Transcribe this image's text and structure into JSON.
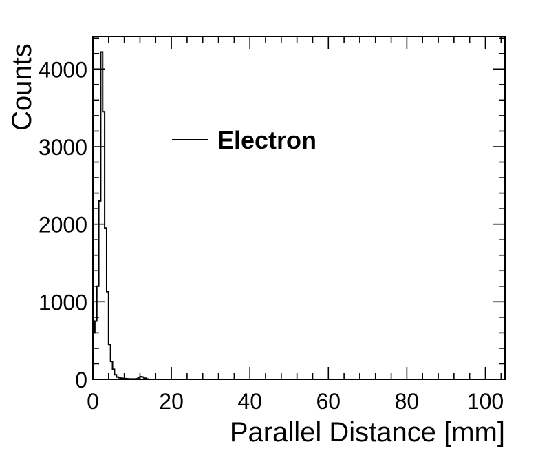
{
  "chart_data": {
    "type": "histogram",
    "title": "",
    "xlabel": "Parallel Distance [mm]",
    "ylabel": "Counts",
    "xlim": [
      0,
      105
    ],
    "ylim": [
      0,
      4420
    ],
    "xticks": [
      0,
      20,
      40,
      60,
      80,
      100
    ],
    "yticks": [
      0,
      1000,
      2000,
      3000,
      4000
    ],
    "grid": false,
    "legend_position": "top-center",
    "series": [
      {
        "name": "Electron",
        "color": "#000000",
        "bin_width": 0.5,
        "x": [
          0,
          0.5,
          1,
          1.5,
          2,
          2.5,
          3,
          3.5,
          4,
          4.5,
          5,
          5.5,
          6,
          6.5,
          7,
          7.5,
          8,
          8.5,
          9,
          9.5,
          10,
          10.5,
          11,
          11.5,
          12,
          12.5,
          13,
          13.5,
          14
        ],
        "values": [
          600,
          750,
          1200,
          2300,
          4220,
          3450,
          1950,
          1130,
          450,
          230,
          130,
          60,
          30,
          20,
          15,
          12,
          10,
          8,
          6,
          5,
          5,
          5,
          8,
          20,
          35,
          30,
          15,
          5,
          0
        ]
      }
    ]
  }
}
